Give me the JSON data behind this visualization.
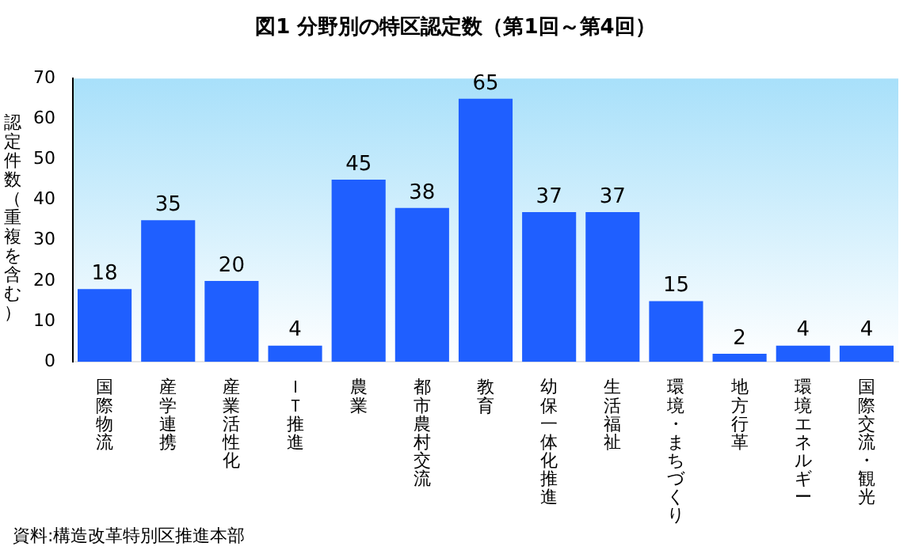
{
  "chart_data": {
    "type": "bar",
    "title": "図1 分野別の特区認定数（第1回～第4回）",
    "ylabel": "認定件数（重複を含む）",
    "categories": [
      "国際物流",
      "産学連携",
      "産業活性化",
      "ＩＴ推進",
      "農業",
      "都市農村交流",
      "教育",
      "幼保一体化推進",
      "生活福祉",
      "環境・まちづくり",
      "地方行革",
      "環境エネルギー",
      "国際交流・観光"
    ],
    "values": [
      18,
      35,
      20,
      4,
      45,
      38,
      65,
      37,
      37,
      15,
      2,
      4,
      4
    ],
    "color": "#1f5fff",
    "ylim": [
      0,
      70
    ],
    "yticks": [
      0,
      10,
      20,
      30,
      40,
      50,
      60,
      70
    ],
    "data_labels": true,
    "annotations": [
      "資料:構造改革特別区推進本部"
    ]
  }
}
